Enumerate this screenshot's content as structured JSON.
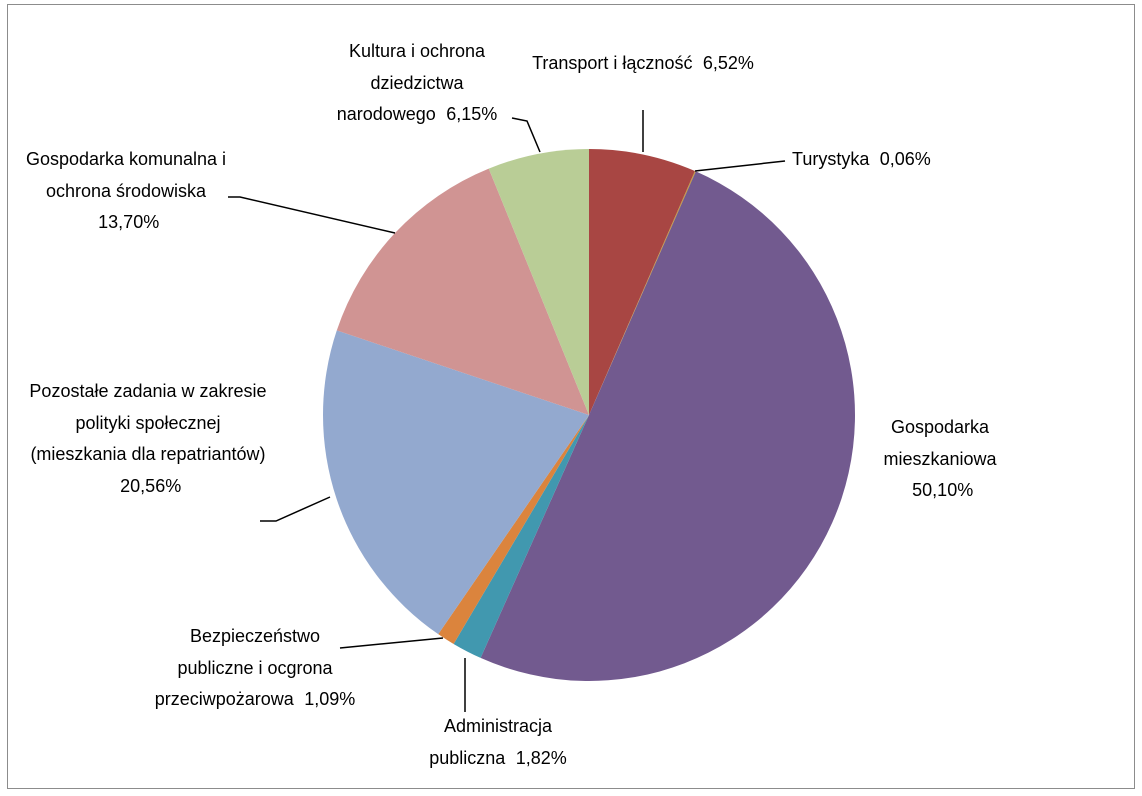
{
  "chart_data": {
    "type": "pie",
    "categories": [
      "Transport i łączność",
      "Turystyka",
      "Gospodarka mieszkaniowa",
      "Administracja publiczna",
      "Bezpieczeństwo publiczne i ocgrona przeciwpożarowa",
      "Pozostałe zadania w zakresie polityki społecznej (mieszkania dla repatriantów)",
      "Gospodarka komunalna i ochrona środowiska",
      "Kultura i ochrona dziedzictwa narodowego"
    ],
    "values": [
      6.52,
      0.06,
      50.1,
      1.82,
      1.09,
      20.56,
      13.7,
      6.15
    ],
    "value_labels": [
      "6,52%",
      "0,06%",
      "50,10%",
      "1,82%",
      "1,09%",
      "20,56%",
      "13,70%",
      "6,15%"
    ],
    "colors": [
      "#a84643",
      "#c39a3a",
      "#725a8f",
      "#4198af",
      "#db843d",
      "#93a9cf",
      "#d09493",
      "#b9cd96"
    ]
  }
}
